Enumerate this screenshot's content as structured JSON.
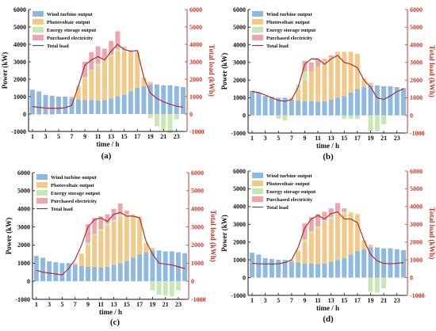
{
  "colors": {
    "wind": "#8fb9e1",
    "pv": "#f3c98a",
    "storage": "#c9e7b4",
    "purchased": "#eea6ad",
    "load": "#a83232",
    "right_axis": "#c0392b"
  },
  "chart_data": [
    {
      "panel": "(a)",
      "type": "bar",
      "xlabel": "time / h",
      "ylabel": "Power (kW)",
      "y2label": "Total load (kWh)",
      "ylim": [
        -1000,
        6000
      ],
      "y2lim": [
        -1000,
        6000
      ],
      "yticks": [
        -1000,
        0,
        1000,
        2000,
        3000,
        4000,
        5000,
        6000
      ],
      "xticks": [
        1,
        3,
        5,
        7,
        9,
        11,
        13,
        15,
        17,
        19,
        21,
        23
      ],
      "legend": [
        "Wind turbine output",
        "Photovoltaic output",
        "Energy storage output",
        "Purchased electricity",
        "Total load"
      ],
      "x": [
        1,
        2,
        3,
        4,
        5,
        6,
        7,
        8,
        9,
        10,
        11,
        12,
        13,
        14,
        15,
        16,
        17,
        18,
        19,
        20,
        21,
        22,
        23,
        24
      ],
      "series": [
        {
          "name": "Wind turbine output",
          "values": [
            1400,
            1300,
            1100,
            1050,
            1000,
            1000,
            900,
            850,
            800,
            800,
            780,
            800,
            900,
            1000,
            1100,
            1300,
            1500,
            1600,
            1700,
            1700,
            1650,
            1650,
            1600,
            1550
          ]
        },
        {
          "name": "Photovoltaic output",
          "values": [
            0,
            0,
            0,
            0,
            0,
            0,
            100,
            600,
            1200,
            1700,
            2000,
            2300,
            2400,
            2600,
            2500,
            2300,
            2000,
            500,
            150,
            0,
            0,
            0,
            0,
            0
          ]
        },
        {
          "name": "Energy storage output",
          "values": [
            -50,
            -50,
            -50,
            -50,
            0,
            0,
            0,
            200,
            100,
            50,
            100,
            50,
            100,
            150,
            150,
            100,
            100,
            0,
            -250,
            -700,
            -900,
            -1100,
            -300,
            0
          ]
        },
        {
          "name": "Purchased electricity",
          "values": [
            0,
            0,
            0,
            0,
            0,
            0,
            0,
            0,
            900,
            1000,
            1000,
            600,
            800,
            1000,
            100,
            0,
            0,
            0,
            0,
            0,
            0,
            0,
            0,
            0
          ]
        }
      ],
      "load": [
        430,
        380,
        340,
        330,
        330,
        360,
        500,
        1600,
        2800,
        3100,
        3300,
        3100,
        3600,
        4000,
        3700,
        3600,
        3650,
        2100,
        1200,
        900,
        700,
        560,
        450,
        390
      ]
    },
    {
      "panel": "(b)",
      "type": "bar",
      "xlabel": "time / h",
      "ylabel": "Power (kW)",
      "y2label": "Total load (kWh)",
      "ylim": [
        -1000,
        6000
      ],
      "y2lim": [
        -1000,
        6000
      ],
      "yticks": [
        -1000,
        0,
        1000,
        2000,
        3000,
        4000,
        5000,
        6000
      ],
      "xticks": [
        1,
        3,
        5,
        7,
        9,
        11,
        13,
        15,
        17,
        19,
        21,
        23
      ],
      "legend": [
        "Wind turbine output",
        "Photovoltaic output",
        "Energy storage output",
        "Purchased electricity",
        "Total load"
      ],
      "x": [
        1,
        2,
        3,
        4,
        5,
        6,
        7,
        8,
        9,
        10,
        11,
        12,
        13,
        14,
        15,
        16,
        17,
        18,
        19,
        20,
        21,
        22,
        23,
        24
      ],
      "series": [
        {
          "name": "Wind turbine output",
          "values": [
            1400,
            1300,
            1100,
            1050,
            1000,
            1000,
            900,
            850,
            800,
            800,
            780,
            800,
            900,
            1000,
            1100,
            1300,
            1500,
            1600,
            1700,
            1700,
            1650,
            1650,
            1600,
            1550
          ]
        },
        {
          "name": "Photovoltaic output",
          "values": [
            0,
            0,
            0,
            0,
            0,
            0,
            100,
            600,
            1200,
            1700,
            2000,
            2300,
            2400,
            2600,
            2500,
            2300,
            2000,
            500,
            150,
            0,
            0,
            0,
            0,
            0
          ]
        },
        {
          "name": "Energy storage output",
          "values": [
            0,
            0,
            0,
            0,
            -200,
            -300,
            0,
            300,
            500,
            0,
            0,
            0,
            0,
            0,
            -200,
            -200,
            -200,
            0,
            -900,
            -900,
            -500,
            0,
            0,
            0
          ]
        },
        {
          "name": "Purchased electricity",
          "values": [
            0,
            0,
            0,
            0,
            0,
            0,
            0,
            0,
            600,
            500,
            400,
            100,
            100,
            0,
            0,
            0,
            0,
            0,
            0,
            0,
            0,
            0,
            0,
            0
          ]
        }
      ],
      "load": [
        1350,
        1300,
        1150,
        1000,
        850,
        800,
        900,
        1600,
        2900,
        3200,
        3200,
        2900,
        3200,
        3400,
        3000,
        2900,
        2700,
        2000,
        1600,
        1000,
        900,
        1100,
        1350,
        1500
      ]
    },
    {
      "panel": "(c)",
      "type": "bar",
      "xlabel": "time / h",
      "ylabel": "Power (kW)",
      "y2label": "Total load (kWh)",
      "ylim": [
        -1000,
        6000
      ],
      "y2lim": [
        -1000,
        6000
      ],
      "yticks": [
        -1000,
        0,
        1000,
        2000,
        3000,
        4000,
        5000,
        6000
      ],
      "xticks": [
        1,
        3,
        5,
        7,
        9,
        11,
        13,
        15,
        17,
        19,
        21,
        23
      ],
      "legend": [
        "Wind turbine output",
        "Photovoltaic output",
        "Energy storage output",
        "Purchased electricity",
        "Total load"
      ],
      "x": [
        1,
        2,
        3,
        4,
        5,
        6,
        7,
        8,
        9,
        10,
        11,
        12,
        13,
        14,
        15,
        16,
        17,
        18,
        19,
        20,
        21,
        22,
        23,
        24
      ],
      "series": [
        {
          "name": "Wind turbine output",
          "values": [
            1400,
            1300,
            1100,
            1050,
            1000,
            1000,
            900,
            850,
            800,
            800,
            780,
            800,
            900,
            1000,
            1100,
            1300,
            1500,
            1600,
            1700,
            1700,
            1650,
            1650,
            1600,
            1550
          ]
        },
        {
          "name": "Photovoltaic output",
          "values": [
            0,
            0,
            0,
            0,
            0,
            0,
            100,
            600,
            1200,
            1700,
            2000,
            2300,
            2400,
            2600,
            2500,
            2300,
            2000,
            500,
            150,
            0,
            0,
            0,
            0,
            0
          ]
        },
        {
          "name": "Energy storage output",
          "values": [
            0,
            0,
            0,
            0,
            0,
            0,
            0,
            100,
            150,
            100,
            100,
            100,
            100,
            100,
            100,
            100,
            100,
            0,
            -500,
            -750,
            -800,
            -850,
            -500,
            0
          ]
        },
        {
          "name": "Purchased electricity",
          "values": [
            0,
            0,
            0,
            0,
            0,
            0,
            0,
            0,
            1000,
            900,
            700,
            500,
            600,
            600,
            200,
            0,
            0,
            0,
            0,
            0,
            0,
            0,
            0,
            0
          ]
        }
      ],
      "load": [
        600,
        500,
        450,
        400,
        350,
        700,
        1200,
        2000,
        3000,
        3400,
        3500,
        3300,
        3700,
        3800,
        3600,
        3600,
        3500,
        2200,
        1500,
        1000,
        950,
        900,
        800,
        700
      ]
    },
    {
      "panel": "(d)",
      "type": "bar",
      "xlabel": "time / h",
      "ylabel": "Power (kW)",
      "y2label": "Total load (kWh)",
      "ylim": [
        -1000,
        6000
      ],
      "y2lim": [
        -1000,
        6000
      ],
      "yticks": [
        -1000,
        0,
        1000,
        2000,
        3000,
        4000,
        5000,
        6000
      ],
      "xticks": [
        1,
        3,
        5,
        7,
        9,
        11,
        13,
        15,
        17,
        19,
        21,
        23
      ],
      "legend": [
        "Wind turbine output",
        "Photovoltaic output",
        "Energy storage output",
        "Purchased electricity",
        "Total load"
      ],
      "x": [
        1,
        2,
        3,
        4,
        5,
        6,
        7,
        8,
        9,
        10,
        11,
        12,
        13,
        14,
        15,
        16,
        17,
        18,
        19,
        20,
        21,
        22,
        23,
        24
      ],
      "series": [
        {
          "name": "Wind turbine output",
          "values": [
            1400,
            1300,
            1100,
            1050,
            1000,
            1000,
            900,
            850,
            800,
            800,
            780,
            800,
            900,
            1000,
            1100,
            1300,
            1500,
            1600,
            1700,
            1700,
            1650,
            1650,
            1600,
            1550
          ]
        },
        {
          "name": "Photovoltaic output",
          "values": [
            0,
            0,
            0,
            0,
            0,
            0,
            100,
            600,
            1200,
            1700,
            2000,
            2300,
            2400,
            2600,
            2500,
            2300,
            2000,
            500,
            150,
            0,
            0,
            0,
            0,
            0
          ]
        },
        {
          "name": "Energy storage output",
          "values": [
            0,
            0,
            0,
            0,
            0,
            0,
            0,
            100,
            150,
            100,
            100,
            100,
            100,
            100,
            100,
            100,
            100,
            0,
            -800,
            -850,
            -600,
            0,
            0,
            0
          ]
        },
        {
          "name": "Purchased electricity",
          "values": [
            0,
            0,
            0,
            0,
            0,
            0,
            0,
            0,
            900,
            800,
            700,
            500,
            500,
            500,
            200,
            0,
            0,
            0,
            0,
            0,
            0,
            0,
            0,
            0
          ]
        }
      ],
      "load": [
        800,
        780,
        770,
        760,
        780,
        850,
        1000,
        1700,
        2800,
        3300,
        3500,
        3300,
        3600,
        3700,
        3300,
        3300,
        3100,
        2100,
        1300,
        950,
        800,
        780,
        800,
        850
      ]
    }
  ]
}
